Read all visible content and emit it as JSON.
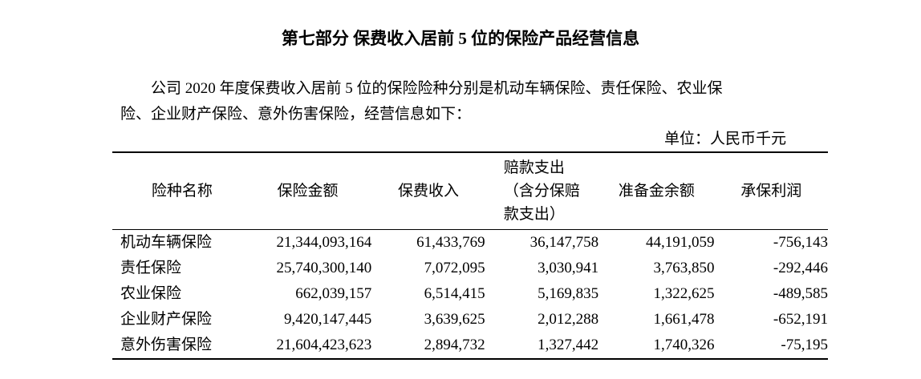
{
  "title": "第七部分  保费收入居前 5 位的保险产品经营信息",
  "paragraph": {
    "line1": "公司 2020 年度保费收入居前 5 位的保险险种分别是机动车辆保险、责任保险、农业保",
    "line2": "险、企业财产保险、意外伤害保险，经营信息如下："
  },
  "unit": "单位：人民币千元",
  "table": {
    "headers": {
      "name": "险种名称",
      "insured_amount": "保险金额",
      "premium": "保费收入",
      "claims_line1": "赔款支出",
      "claims_line2": "（含分保赔",
      "claims_line3": "款支出）",
      "reserve": "准备金余额",
      "profit": "承保利润"
    },
    "rows": [
      {
        "name": "机动车辆保险",
        "insured_amount": "21,344,093,164",
        "premium": "61,433,769",
        "claims": "36,147,758",
        "reserve": "44,191,059",
        "profit": "-756,143"
      },
      {
        "name": "责任保险",
        "insured_amount": "25,740,300,140",
        "premium": "7,072,095",
        "claims": "3,030,941",
        "reserve": "3,763,850",
        "profit": "-292,446"
      },
      {
        "name": "农业保险",
        "insured_amount": "662,039,157",
        "premium": "6,514,415",
        "claims": "5,169,835",
        "reserve": "1,322,625",
        "profit": "-489,585"
      },
      {
        "name": "企业财产保险",
        "insured_amount": "9,420,147,445",
        "premium": "3,639,625",
        "claims": "2,012,288",
        "reserve": "1,661,478",
        "profit": "-652,191"
      },
      {
        "name": "意外伤害保险",
        "insured_amount": "21,604,423,623",
        "premium": "2,894,732",
        "claims": "1,327,442",
        "reserve": "1,740,326",
        "profit": "-75,195"
      }
    ]
  }
}
